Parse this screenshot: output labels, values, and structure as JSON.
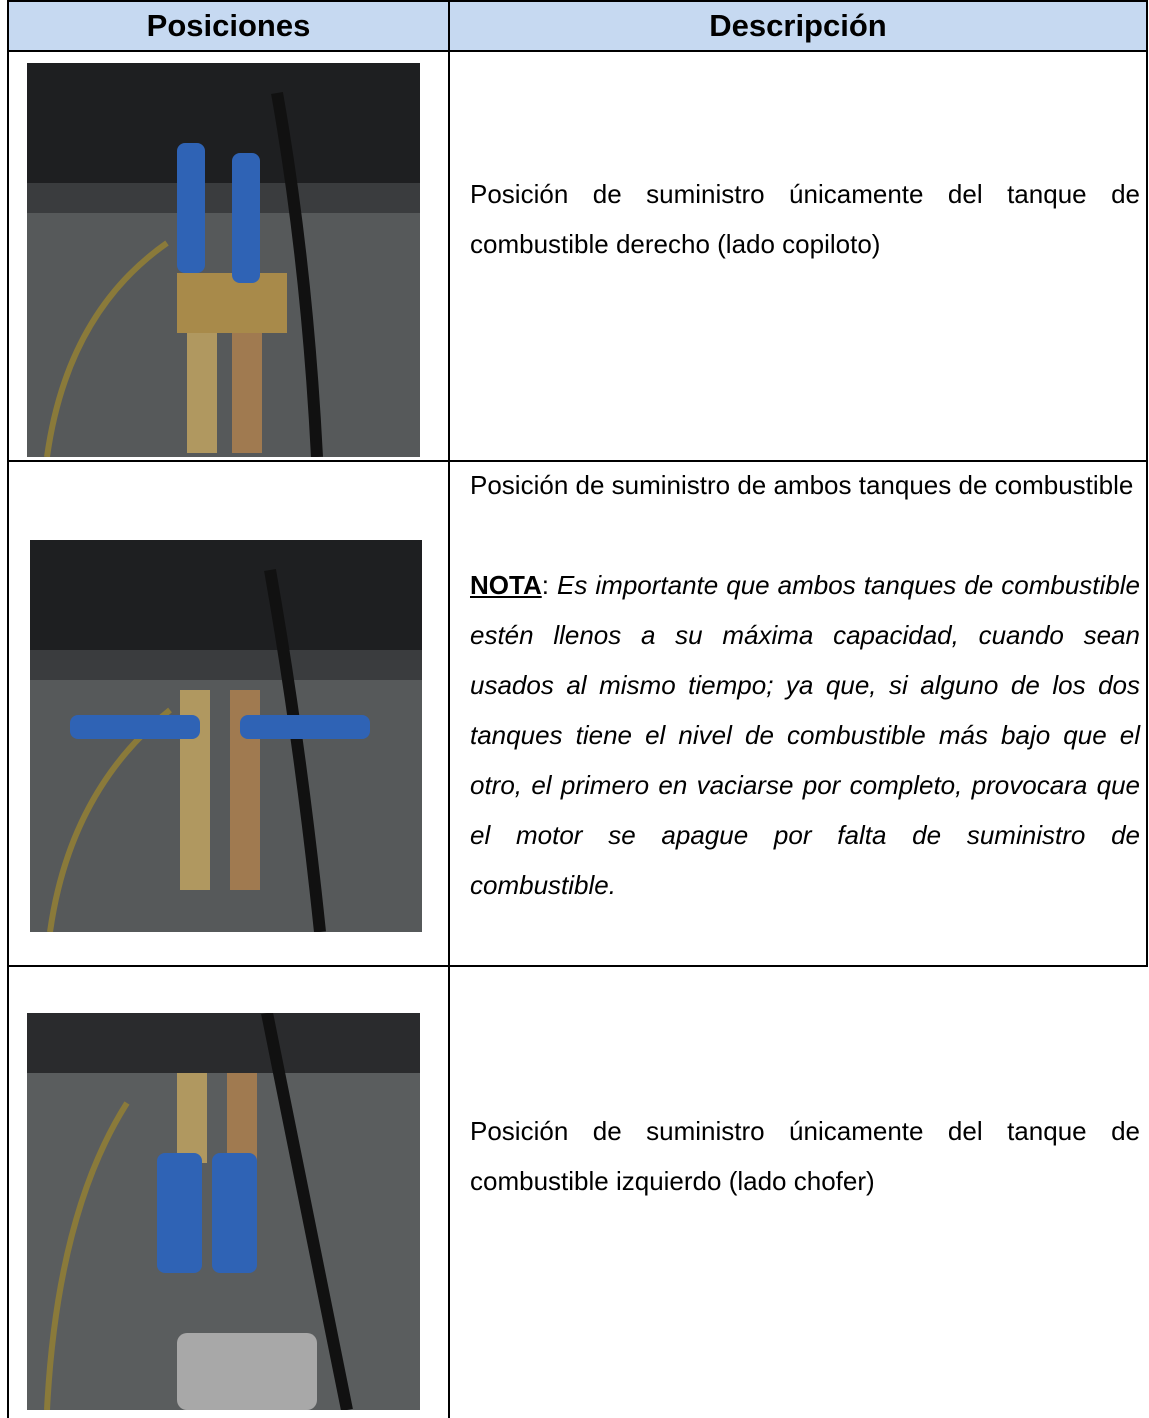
{
  "table": {
    "header": [
      "Posiciones",
      "Descripción"
    ],
    "rows": [
      {
        "description": "Posición de suministro únicamente del tanque de combustible derecho (lado copiloto)"
      },
      {
        "description": "Posición de suministro de ambos tanques de combustible",
        "note": {
          "label": "NOTA",
          "colon": ":",
          "text": "Es importante que ambos tanques de combustible estén llenos a su máxima capacidad, cuando sean usados al mismo tiempo; ya que, si alguno de los dos tanques tiene el nivel de combustible más bajo que el otro, el primero en vaciarse por completo, provocara que el motor se apague por falta de suministro de combustible."
        }
      },
      {
        "description": "Posición de suministro únicamente del tanque de combustible izquierdo (lado chofer)"
      }
    ]
  }
}
